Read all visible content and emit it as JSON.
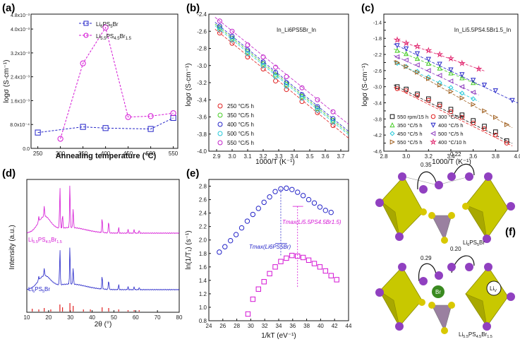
{
  "colors": {
    "blue": "#2424c8",
    "magenta": "#d414d4",
    "red_fit": "#e02020",
    "black": "#111111",
    "green": "#44cc22",
    "cyan": "#22c8d8",
    "pink": "#e0206a",
    "purple_atom": "#9040c0",
    "yellow_poly": "#c8c800",
    "green_atom": "#3a8a20"
  },
  "panel_labels": {
    "a": "(a)",
    "b": "(b)",
    "c": "(c)",
    "d": "(d)",
    "e": "(e)",
    "f": "(f)"
  },
  "chart_data": [
    {
      "id": "a",
      "type": "line",
      "xlabel": "Annealing temperature (°C)",
      "ylabel": "logσ (S·cm⁻¹)",
      "x": [
        250,
        300,
        350,
        400,
        450,
        500,
        550
      ],
      "xlim": [
        235,
        560
      ],
      "ylim": [
        0,
        0.0045
      ],
      "yticks": [
        {
          "v": 0,
          "label": "0.0"
        },
        {
          "v": 0.0008,
          "label": "8.0x10⁻⁴"
        },
        {
          "v": 0.0016,
          "label": "1.6x10⁻³"
        },
        {
          "v": 0.0024,
          "label": "2.4x10⁻³"
        },
        {
          "v": 0.0032,
          "label": "3.2x10⁻³"
        },
        {
          "v": 0.004,
          "label": "4.0x10⁻³"
        },
        {
          "v": 0.0048,
          "label": "4.8x10⁻³"
        }
      ],
      "series": [
        {
          "name": "Li6PS5Br",
          "marker": "square",
          "color": "#2424c8",
          "x": [
            250,
            350,
            400,
            500,
            550
          ],
          "values": [
            0.00053,
            0.00072,
            0.00068,
            0.00065,
            0.00102
          ]
        },
        {
          "name": "Li5.5PS4.5Br1.5",
          "marker": "circle",
          "color": "#d414d4",
          "x": [
            300,
            350,
            400,
            450,
            500,
            550
          ],
          "values": [
            0.00032,
            0.00285,
            0.00405,
            0.00105,
            0.00108,
            0.00118
          ]
        }
      ],
      "legend": [
        "Li",
        "6",
        "PS",
        "5",
        "Br",
        "Li",
        "5.5",
        "PS",
        "4.5",
        "Br",
        "1.5"
      ]
    },
    {
      "id": "b",
      "type": "scatter",
      "title": "In_Li6PS5Br_In",
      "xlabel": "1000/T (K⁻¹)",
      "ylabel": "logσ (S·cm⁻¹)",
      "xlim": [
        2.85,
        3.75
      ],
      "ylim": [
        -4.0,
        -2.4
      ],
      "xticks": [
        "2.9",
        "3.0",
        "3.1",
        "3.2",
        "3.3",
        "3.4",
        "3.5",
        "3.6",
        "3.7"
      ],
      "yticks": [
        "-4.0",
        "-3.8",
        "-3.6",
        "-3.4",
        "-3.2",
        "-3.0",
        "-2.8",
        "-2.6",
        "-2.4"
      ],
      "series": [
        {
          "name": "250 °C/5 h",
          "color": "#e02020",
          "x": [
            2.92,
            3.0,
            3.1,
            3.2,
            3.28,
            3.35,
            3.45,
            3.55,
            3.65
          ],
          "values": [
            -2.62,
            -2.74,
            -2.9,
            -3.04,
            -3.18,
            -3.28,
            -3.42,
            -3.55,
            -3.7
          ]
        },
        {
          "name": "350 °C/5 h",
          "color": "#44cc22",
          "x": [
            2.92,
            3.0,
            3.1,
            3.2,
            3.28,
            3.35,
            3.45,
            3.55,
            3.65
          ],
          "values": [
            -2.56,
            -2.68,
            -2.84,
            -2.98,
            -3.11,
            -3.22,
            -3.36,
            -3.5,
            -3.64
          ]
        },
        {
          "name": "400 °C/5 h",
          "color": "#2424c8",
          "x": [
            2.92,
            3.0,
            3.1,
            3.2,
            3.28,
            3.35,
            3.45,
            3.55,
            3.65
          ],
          "values": [
            -2.54,
            -2.66,
            -2.82,
            -2.96,
            -3.08,
            -3.2,
            -3.34,
            -3.48,
            -3.62
          ]
        },
        {
          "name": "500 °C/5 h",
          "color": "#22c8d8",
          "x": [
            2.92,
            3.0,
            3.1,
            3.2,
            3.28,
            3.35,
            3.45,
            3.55,
            3.65
          ],
          "values": [
            -2.58,
            -2.7,
            -2.86,
            -3.0,
            -3.13,
            -3.24,
            -3.38,
            -3.52,
            -3.66
          ]
        },
        {
          "name": "550 °C/5 h",
          "color": "#c020c8",
          "x": [
            2.92,
            3.0,
            3.1,
            3.2,
            3.28,
            3.35,
            3.45,
            3.55,
            3.65
          ],
          "values": [
            -2.48,
            -2.6,
            -2.76,
            -2.9,
            -3.02,
            -3.13,
            -3.26,
            -3.4,
            -3.54
          ]
        }
      ]
    },
    {
      "id": "c",
      "type": "scatter",
      "title": "In_Li5.5PS4.5Br1.5_In",
      "xlabel": "1000/T (K⁻¹)",
      "ylabel": "logσ (S·cm⁻¹)",
      "xlim": [
        2.8,
        4.0
      ],
      "ylim": [
        -4.6,
        -1.2
      ],
      "xticks": [
        "2.8",
        "3.0",
        "3.2",
        "3.4",
        "3.6",
        "3.8",
        "4.0"
      ],
      "yticks": [
        "-4.6",
        "-4.4",
        "-4.2",
        "-4.0",
        "-3.8",
        "-3.6",
        "-3.4",
        "-3.2",
        "-3.0",
        "-2.8",
        "-2.6",
        "-2.4",
        "-2.2",
        "-2.0",
        "-1.8",
        "-1.6",
        "-1.4",
        "-1.2"
      ],
      "series": [
        {
          "name": "550 rpm/15 h",
          "color": "#111111",
          "marker": "square",
          "x": [
            2.92,
            3.0,
            3.1,
            3.2,
            3.3,
            3.4,
            3.5,
            3.6,
            3.7,
            3.8,
            3.9
          ],
          "values": [
            -3.0,
            -3.06,
            -3.18,
            -3.3,
            -3.44,
            -3.56,
            -3.7,
            -3.84,
            -3.98,
            -4.12,
            -4.34
          ]
        },
        {
          "name": "300 °C/5 h",
          "color": "#e02020",
          "marker": "circle",
          "x": [
            2.92,
            3.0,
            3.1,
            3.2,
            3.3,
            3.4,
            3.5,
            3.6,
            3.7,
            3.8,
            3.9
          ],
          "values": [
            -3.05,
            -3.1,
            -3.22,
            -3.34,
            -3.48,
            -3.62,
            -3.76,
            -3.9,
            -4.04,
            -4.2,
            -4.4
          ]
        },
        {
          "name": "350 °C/5 h",
          "color": "#44cc22",
          "marker": "triangle",
          "x": [
            2.92,
            3.0,
            3.1,
            3.2,
            3.3,
            3.4,
            3.5,
            3.6
          ],
          "values": [
            -2.1,
            -2.18,
            -2.3,
            -2.42,
            -2.54,
            -2.66,
            -2.78,
            -2.9
          ]
        },
        {
          "name": "400 °C/5 h",
          "color": "#2424c8",
          "marker": "triangle-down",
          "x": [
            2.92,
            3.0,
            3.1,
            3.2,
            3.3,
            3.4,
            3.5,
            3.6,
            3.7,
            3.8,
            3.95
          ],
          "values": [
            -1.98,
            -2.06,
            -2.18,
            -2.32,
            -2.44,
            -2.58,
            -2.7,
            -2.84,
            -2.96,
            -3.1,
            -3.34
          ]
        },
        {
          "name": "450 °C/5 h",
          "color": "#22c8d8",
          "marker": "diamond",
          "x": [
            2.92,
            3.0,
            3.1,
            3.2,
            3.3,
            3.4,
            3.5,
            3.6
          ],
          "values": [
            -2.42,
            -2.5,
            -2.62,
            -2.76,
            -2.9,
            -3.02,
            -3.16,
            -3.3
          ]
        },
        {
          "name": "500 °C/5 h",
          "color": "#9040c0",
          "marker": "triangle-left",
          "x": [
            2.92,
            3.0,
            3.1,
            3.2,
            3.3,
            3.4,
            3.5,
            3.6
          ],
          "values": [
            -2.26,
            -2.34,
            -2.46,
            -2.6,
            -2.72,
            -2.86,
            -3.0,
            -3.14
          ]
        },
        {
          "name": "550 °C/5 h",
          "color": "#a06020",
          "marker": "triangle-right",
          "x": [
            2.92,
            3.0,
            3.1,
            3.2,
            3.3,
            3.4,
            3.5,
            3.6,
            3.7,
            3.8,
            3.9
          ],
          "values": [
            -2.4,
            -2.5,
            -2.64,
            -2.8,
            -2.96,
            -3.12,
            -3.28,
            -3.44,
            -3.6,
            -3.76,
            -3.94
          ]
        },
        {
          "name": "400 °C/10 h",
          "color": "#e0206a",
          "marker": "star",
          "x": [
            2.92,
            3.0,
            3.1,
            3.2,
            3.3,
            3.4,
            3.5,
            3.65
          ],
          "values": [
            -1.84,
            -1.92,
            -2.0,
            -2.1,
            -2.2,
            -2.3,
            -2.42,
            -2.56
          ]
        }
      ]
    },
    {
      "id": "d",
      "type": "line",
      "xlabel": "2θ (°)",
      "ylabel": "Intensity (a.u.)",
      "xlim": [
        10,
        80
      ],
      "xticks": [
        "10",
        "20",
        "30",
        "40",
        "50",
        "60",
        "70",
        "80"
      ],
      "series": [
        {
          "name": "Li5.5PS4.5Br1.5",
          "color": "#d414d4",
          "label": [
            "Li",
            "5.5",
            "PS",
            "4.5",
            "Br",
            "1.5"
          ]
        },
        {
          "name": "Li6PS5Br",
          "color": "#2424c8",
          "label": [
            "Li",
            "6",
            "PS",
            "5",
            "Br"
          ]
        },
        {
          "name": "reference",
          "color": "#e02020"
        }
      ],
      "reference_peaks": [
        12.5,
        15.5,
        18.0,
        21.0,
        25.2,
        26.4,
        29.8,
        31.3,
        36.0,
        39.2,
        44.6,
        47.6,
        52.2,
        56.5,
        59.3,
        61.6
      ]
    },
    {
      "id": "e",
      "type": "scatter",
      "xlabel": "1/kT (eV⁻¹)",
      "ylabel": "ln(1/T₁) (s⁻¹)",
      "xlim": [
        24,
        44
      ],
      "ylim": [
        0.8,
        2.9
      ],
      "xticks": [
        "24",
        "26",
        "28",
        "30",
        "32",
        "34",
        "36",
        "38",
        "40",
        "42",
        "44"
      ],
      "yticks": [
        "0.8",
        "1.0",
        "1.2",
        "1.4",
        "1.6",
        "1.8",
        "2.0",
        "2.2",
        "2.4",
        "2.6",
        "2.8"
      ],
      "series": [
        {
          "name": "Li5.5PS4.5Br1.5",
          "marker": "circle",
          "color": "#2424c8",
          "x": [
            25.5,
            26.3,
            27.1,
            27.9,
            28.7,
            29.5,
            30.3,
            31.1,
            31.9,
            32.7,
            33.5,
            34.3,
            35.1,
            35.9,
            36.7,
            37.5,
            38.3,
            39.1,
            39.9,
            40.7,
            41.5
          ],
          "values": [
            1.82,
            1.9,
            1.99,
            2.08,
            2.18,
            2.28,
            2.38,
            2.47,
            2.56,
            2.64,
            2.72,
            2.76,
            2.77,
            2.75,
            2.71,
            2.66,
            2.6,
            2.55,
            2.49,
            2.44,
            2.41
          ]
        },
        {
          "name": "Li6PS5Br",
          "marker": "square",
          "color": "#d414d4",
          "x": [
            29.6,
            30.3,
            31.1,
            31.9,
            32.7,
            33.5,
            34.3,
            35.1,
            35.9,
            36.7,
            37.5,
            38.3,
            39.1,
            39.9,
            40.7,
            41.5,
            42.3
          ],
          "values": [
            0.9,
            1.12,
            1.27,
            1.38,
            1.5,
            1.6,
            1.68,
            1.73,
            1.77,
            1.76,
            1.74,
            1.7,
            1.65,
            1.6,
            1.54,
            1.47,
            1.41
          ]
        }
      ],
      "annotations": [
        "Tmax(Li5.5PS4.5Br1.5)",
        "Tmax(Li6PS5Br)"
      ]
    }
  ],
  "diagram_f": {
    "top_jumps": [
      "0.35",
      "0.22"
    ],
    "top_label": [
      "Li",
      "6",
      "PS",
      "5",
      "Br"
    ],
    "bottom_jumps": [
      "0.29",
      "0.20"
    ],
    "bottom_label": [
      "Li",
      "5.5",
      "PS",
      "4.5",
      "Br",
      "1.5"
    ],
    "br_atom": "Br",
    "vacancy": [
      "Li",
      "V"
    ]
  }
}
